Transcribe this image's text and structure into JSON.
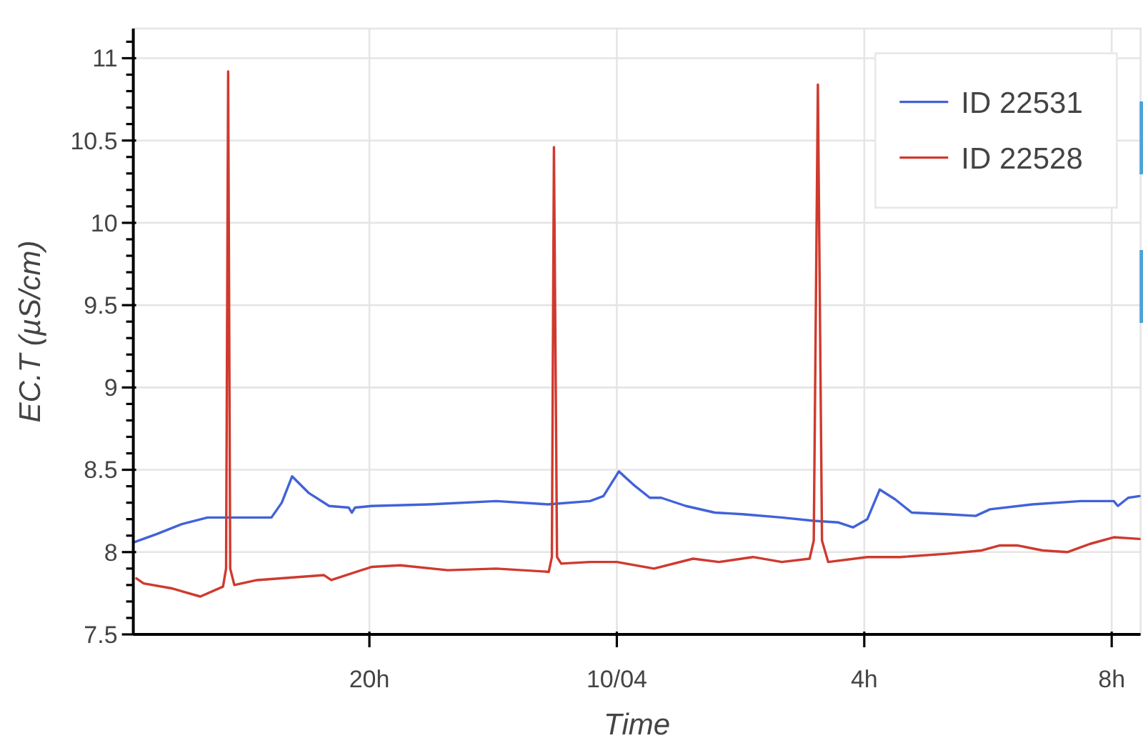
{
  "chart_data": {
    "type": "line",
    "xlabel": "Time",
    "ylabel": "EC.T (µS/cm)",
    "xlim": [
      "--10-03T16:11",
      "--10-04T08:28"
    ],
    "xticks": [
      {
        "value": "--10-03T20:00",
        "label": "20h"
      },
      {
        "value": "--10-04T00:00",
        "label": "10/04"
      },
      {
        "value": "--10-04T04:00",
        "label": "4h"
      },
      {
        "value": "--10-04T08:00",
        "label": "8h"
      }
    ],
    "ylim": [
      7.5,
      11.18
    ],
    "yticks": [
      7.5,
      {
        "value": 7.6,
        "label": null
      },
      {
        "value": 7.7,
        "label": null
      },
      {
        "value": 7.8,
        "label": null
      },
      {
        "value": 7.9,
        "label": null
      },
      8,
      {
        "value": 8.1,
        "label": null
      },
      {
        "value": 8.2,
        "label": null
      },
      {
        "value": 8.3,
        "label": null
      },
      {
        "value": 8.4,
        "label": null
      },
      8.5,
      {
        "value": 8.6,
        "label": null
      },
      {
        "value": 8.7,
        "label": null
      },
      {
        "value": 8.8,
        "label": null
      },
      {
        "value": 8.9,
        "label": null
      },
      9,
      {
        "value": 9.1,
        "label": null
      },
      {
        "value": 9.2,
        "label": null
      },
      {
        "value": 9.3,
        "label": null
      },
      {
        "value": 9.4,
        "label": null
      },
      9.5,
      {
        "value": 9.6,
        "label": null
      },
      {
        "value": 9.7,
        "label": null
      },
      {
        "value": 9.8,
        "label": null
      },
      {
        "value": 9.9,
        "label": null
      },
      10,
      {
        "value": 10.1,
        "label": null
      },
      {
        "value": 10.2,
        "label": null
      },
      {
        "value": 10.3,
        "label": null
      },
      {
        "value": 10.4,
        "label": null
      },
      10.5,
      {
        "value": 10.6,
        "label": null
      },
      {
        "value": 10.7,
        "label": null
      },
      {
        "value": 10.8,
        "label": null
      },
      {
        "value": 10.9,
        "label": null
      },
      11,
      {
        "value": 11.1,
        "label": null
      }
    ],
    "grid": true,
    "legend": "top right",
    "series": [
      {
        "name": "ID 22531",
        "color": "#4162d8",
        "x": [
          "--10-03T16:12",
          "--10-03T16:34",
          "--10-03T16:58",
          "--10-03T17:23",
          "--10-03T18:25",
          "--10-03T18:35",
          "--10-03T18:45",
          "--10-03T19:01",
          "--10-03T19:21",
          "--10-03T19:40",
          "--10-03T19:43",
          "--10-03T19:46",
          "--10-03T20:02",
          "--10-03T20:58",
          "--10-03T22:03",
          "--10-03T22:53",
          "--10-03T23:34",
          "--10-03T23:47",
          "--10-04T00:02",
          "--10-04T00:16",
          "--10-04T00:32",
          "--10-04T00:43",
          "--10-04T01:07",
          "--10-04T01:35",
          "--10-04T02:02",
          "--10-04T02:40",
          "--10-04T03:11",
          "--10-04T03:35",
          "--10-04T03:49",
          "--10-04T04:03",
          "--10-04T04:15",
          "--10-04T04:30",
          "--10-04T04:46",
          "--10-04T05:20",
          "--10-04T05:48",
          "--10-04T06:02",
          "--10-04T06:43",
          "--10-04T07:30",
          "--10-04T08:02",
          "--10-04T08:06",
          "--10-04T08:16",
          "--10-04T08:27"
        ],
        "values": [
          8.06,
          8.11,
          8.17,
          8.21,
          8.21,
          8.3,
          8.46,
          8.36,
          8.28,
          8.27,
          8.24,
          8.27,
          8.28,
          8.29,
          8.31,
          8.29,
          8.31,
          8.34,
          8.49,
          8.41,
          8.33,
          8.33,
          8.28,
          8.24,
          8.23,
          8.21,
          8.19,
          8.18,
          8.15,
          8.2,
          8.38,
          8.32,
          8.24,
          8.23,
          8.22,
          8.26,
          8.29,
          8.31,
          8.31,
          8.28,
          8.33,
          8.34
        ]
      },
      {
        "name": "ID 22528",
        "color": "#cf3a2e",
        "x": [
          "--10-03T16:14",
          "--10-03T16:21",
          "--10-03T16:48",
          "--10-03T17:16",
          "--10-03T17:38",
          "--10-03T17:41",
          "--10-03T17:43",
          "--10-03T17:45",
          "--10-03T17:49",
          "--10-03T18:11",
          "--10-03T19:16",
          "--10-03T19:23",
          "--10-03T20:02",
          "--10-03T20:30",
          "--10-03T21:16",
          "--10-03T22:03",
          "--10-03T22:54",
          "--10-03T22:57",
          "--10-03T22:59",
          "--10-03T23:02",
          "--10-03T23:06",
          "--10-03T23:34",
          "--10-04T00:00",
          "--10-04T00:36",
          "--10-04T01:14",
          "--10-04T01:39",
          "--10-04T02:12",
          "--10-04T02:40",
          "--10-04T03:07",
          "--10-04T03:11",
          "--10-04T03:15",
          "--10-04T03:19",
          "--10-04T03:25",
          "--10-04T04:03",
          "--10-04T04:35",
          "--10-04T05:20",
          "--10-04T05:54",
          "--10-04T06:11",
          "--10-04T06:29",
          "--10-04T06:53",
          "--10-04T07:17",
          "--10-04T07:39",
          "--10-04T08:02",
          "--10-04T08:27"
        ],
        "values": [
          7.84,
          7.81,
          7.78,
          7.73,
          7.79,
          7.9,
          10.92,
          7.9,
          7.8,
          7.83,
          7.86,
          7.83,
          7.91,
          7.92,
          7.89,
          7.9,
          7.88,
          7.97,
          10.46,
          7.97,
          7.93,
          7.94,
          7.94,
          7.9,
          7.96,
          7.94,
          7.97,
          7.94,
          7.96,
          8.07,
          10.84,
          8.07,
          7.94,
          7.97,
          7.97,
          7.99,
          8.01,
          8.04,
          8.04,
          8.01,
          8.0,
          8.05,
          8.09,
          8.08
        ]
      }
    ]
  }
}
